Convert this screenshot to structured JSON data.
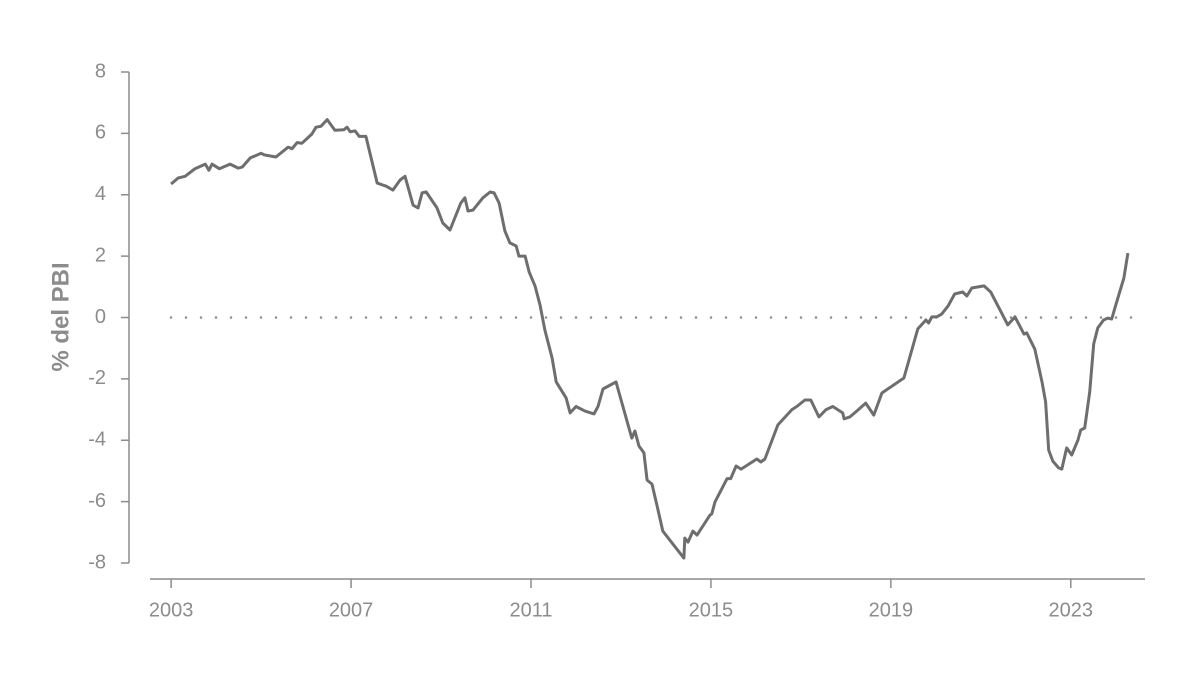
{
  "chart_data": {
    "type": "line",
    "ylabel": "% del PBI",
    "xlim": [
      2002.53,
      2024.65
    ],
    "xticks": [
      2003,
      2007,
      2011,
      2015,
      2019,
      2023
    ],
    "ylim": [
      -8,
      8
    ],
    "yticks": [
      8,
      6,
      4,
      2,
      0,
      -2,
      -4,
      -6,
      -8
    ],
    "reference_line": 0,
    "series": [
      {
        "color": "#6e6e6e",
        "x": [
          2003.0,
          2003.16,
          2003.31,
          2003.53,
          2003.76,
          2003.84,
          2003.91,
          2004.07,
          2004.31,
          2004.49,
          2004.58,
          2004.76,
          2005.0,
          2005.07,
          2005.33,
          2005.6,
          2005.69,
          2005.8,
          2005.91,
          2006.13,
          2006.22,
          2006.33,
          2006.47,
          2006.64,
          2006.84,
          2006.91,
          2006.98,
          2007.09,
          2007.18,
          2007.33,
          2007.58,
          2007.78,
          2007.93,
          2008.09,
          2008.2,
          2008.38,
          2008.49,
          2008.58,
          2008.67,
          2008.91,
          2009.04,
          2009.2,
          2009.44,
          2009.53,
          2009.6,
          2009.71,
          2009.93,
          2010.09,
          2010.18,
          2010.29,
          2010.42,
          2010.53,
          2010.67,
          2010.73,
          2010.87,
          2010.96,
          2011.09,
          2011.2,
          2011.31,
          2011.47,
          2011.56,
          2011.78,
          2011.87,
          2012.0,
          2012.2,
          2012.4,
          2012.49,
          2012.6,
          2012.89,
          2013.24,
          2013.31,
          2013.4,
          2013.51,
          2013.58,
          2013.69,
          2013.82,
          2013.93,
          2014.24,
          2014.4,
          2014.42,
          2014.49,
          2014.6,
          2014.69,
          2014.98,
          2015.02,
          2015.09,
          2015.36,
          2015.44,
          2015.56,
          2015.67,
          2016.02,
          2016.11,
          2016.2,
          2016.49,
          2016.8,
          2016.91,
          2017.09,
          2017.22,
          2017.4,
          2017.56,
          2017.71,
          2017.93,
          2017.96,
          2018.09,
          2018.24,
          2018.44,
          2018.62,
          2018.8,
          2019.29,
          2019.6,
          2019.78,
          2019.84,
          2019.91,
          2020.02,
          2020.13,
          2020.27,
          2020.42,
          2020.6,
          2020.69,
          2020.8,
          2020.91,
          2021.07,
          2021.22,
          2021.6,
          2021.76,
          2021.96,
          2022.02,
          2022.2,
          2022.36,
          2022.44,
          2022.51,
          2022.6,
          2022.73,
          2022.8,
          2022.91,
          2023.02,
          2023.16,
          2023.22,
          2023.31,
          2023.42,
          2023.51,
          2023.6,
          2023.73,
          2023.82,
          2023.91,
          2024.0,
          2024.18,
          2024.27
        ],
        "values": [
          4.35,
          4.55,
          4.6,
          4.85,
          5.0,
          4.8,
          5.0,
          4.85,
          5.0,
          4.87,
          4.9,
          5.2,
          5.35,
          5.3,
          5.23,
          5.55,
          5.5,
          5.7,
          5.68,
          5.98,
          6.2,
          6.23,
          6.45,
          6.1,
          6.12,
          6.2,
          6.05,
          6.08,
          5.9,
          5.9,
          4.38,
          4.28,
          4.15,
          4.48,
          4.6,
          3.66,
          3.57,
          4.06,
          4.09,
          3.57,
          3.08,
          2.85,
          3.73,
          3.9,
          3.47,
          3.5,
          3.9,
          4.09,
          4.06,
          3.73,
          2.82,
          2.43,
          2.33,
          2.0,
          2.0,
          1.48,
          1.03,
          0.41,
          -0.41,
          -1.32,
          -2.1,
          -2.62,
          -3.11,
          -2.9,
          -3.05,
          -3.14,
          -2.9,
          -2.33,
          -2.1,
          -3.93,
          -3.7,
          -4.19,
          -4.41,
          -5.3,
          -5.43,
          -6.24,
          -6.96,
          -7.54,
          -7.84,
          -7.19,
          -7.32,
          -6.96,
          -7.09,
          -6.44,
          -6.4,
          -6.01,
          -5.25,
          -5.25,
          -4.84,
          -4.94,
          -4.61,
          -4.71,
          -4.61,
          -3.5,
          -3.0,
          -2.9,
          -2.69,
          -2.69,
          -3.24,
          -3.0,
          -2.9,
          -3.11,
          -3.3,
          -3.24,
          -3.05,
          -2.79,
          -3.18,
          -2.46,
          -1.97,
          -0.37,
          -0.08,
          -0.18,
          0.02,
          0.02,
          0.11,
          0.37,
          0.77,
          0.83,
          0.7,
          0.96,
          0.99,
          1.03,
          0.83,
          -0.24,
          0.02,
          -0.54,
          -0.5,
          -1.03,
          -2.1,
          -2.75,
          -4.32,
          -4.68,
          -4.9,
          -4.94,
          -4.25,
          -4.48,
          -3.99,
          -3.67,
          -3.6,
          -2.43,
          -0.86,
          -0.34,
          -0.08,
          -0.02,
          -0.05,
          0.41,
          1.29,
          2.1
        ]
      }
    ]
  }
}
